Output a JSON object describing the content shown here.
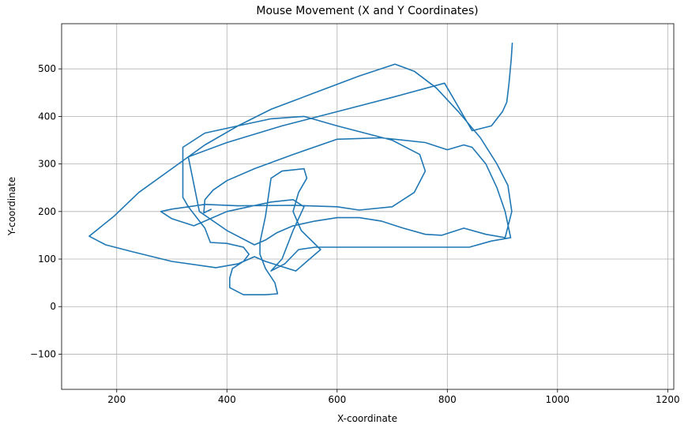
{
  "chart_data": {
    "type": "line",
    "title": "Mouse Movement (X and Y Coordinates)",
    "x_label": "X-coordinate",
    "y_label": "Y-coordinate",
    "xlim": [
      100,
      1211
    ],
    "ylim": [
      -174,
      595
    ],
    "xticks": [
      200,
      400,
      600,
      800,
      1000,
      1200
    ],
    "yticks": [
      {
        "value": -100,
        "label": "−100"
      },
      0,
      100,
      200,
      300,
      400,
      500
    ],
    "grid": true,
    "series": [
      {
        "color": "#1f77b4",
        "x": [
          372,
          358,
          360,
          375,
          400,
          450,
          520,
          600,
          680,
          760,
          800,
          830,
          845,
          870,
          890,
          905,
          915,
          880,
          840,
          700,
          560,
          530,
          505,
          480,
          500,
          520,
          540,
          520,
          480,
          440,
          400,
          370,
          340,
          300,
          280,
          300,
          360,
          420,
          520,
          600,
          640,
          700,
          740,
          760,
          750,
          700,
          600,
          540,
          480,
          420,
          360,
          320,
          320,
          320,
          330,
          350,
          360,
          370,
          400,
          430,
          440,
          430,
          410,
          405,
          405,
          430,
          470,
          492,
          487,
          470,
          460,
          460,
          470,
          480,
          500,
          540,
          545,
          530,
          520,
          535,
          570,
          525,
          470,
          450,
          420,
          380,
          300,
          230,
          180,
          150,
          195,
          240,
          300,
          360,
          420,
          480,
          560,
          640,
          705,
          740,
          780,
          820,
          860,
          890,
          910,
          917,
          905,
          870,
          830,
          790,
          760,
          720,
          680,
          640,
          600,
          560,
          520,
          490,
          470,
          460,
          450,
          400,
          350,
          330,
          400,
          500,
          600,
          700,
          795,
          810,
          830,
          845,
          880,
          900,
          908,
          912,
          916,
          918
        ],
        "values": [
          205,
          197,
          225,
          245,
          265,
          290,
          320,
          352,
          355,
          345,
          330,
          340,
          335,
          300,
          250,
          200,
          145,
          138,
          125,
          125,
          125,
          120,
          90,
          75,
          100,
          160,
          210,
          225,
          220,
          210,
          200,
          185,
          170,
          185,
          200,
          205,
          215,
          212,
          213,
          210,
          203,
          210,
          240,
          285,
          320,
          350,
          380,
          400,
          395,
          380,
          365,
          335,
          300,
          230,
          210,
          180,
          165,
          135,
          133,
          125,
          110,
          95,
          80,
          60,
          40,
          25,
          25,
          27,
          50,
          80,
          110,
          135,
          190,
          270,
          285,
          290,
          270,
          240,
          200,
          160,
          120,
          75,
          95,
          105,
          90,
          82,
          95,
          115,
          130,
          148,
          190,
          240,
          290,
          340,
          380,
          415,
          450,
          485,
          510,
          495,
          460,
          410,
          355,
          300,
          255,
          200,
          145,
          152,
          165,
          150,
          152,
          165,
          180,
          187,
          187,
          180,
          170,
          155,
          140,
          135,
          130,
          160,
          200,
          315,
          345,
          380,
          410,
          440,
          470,
          440,
          400,
          370,
          380,
          410,
          430,
          470,
          520,
          555
        ]
      }
    ]
  }
}
